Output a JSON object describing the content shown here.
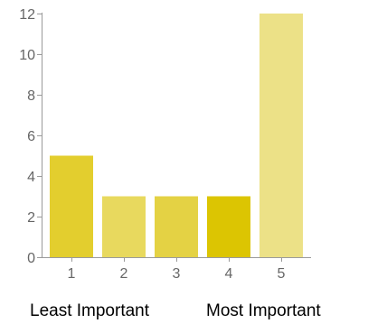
{
  "chart_data": {
    "type": "bar",
    "categories": [
      "1",
      "2",
      "3",
      "4",
      "5"
    ],
    "values": [
      5,
      3,
      3,
      3,
      12
    ],
    "colors": [
      "#E3CE2E",
      "#E8D95E",
      "#E4D244",
      "#DCC502",
      "#ECE187"
    ],
    "ylim": [
      0,
      12
    ],
    "yticks": [
      0,
      2,
      4,
      6,
      8,
      10,
      12
    ],
    "grid": false,
    "legend": "none",
    "xlabel": "",
    "ylabel": ""
  },
  "captions": {
    "left": "Least Important",
    "right": "Most Important"
  }
}
